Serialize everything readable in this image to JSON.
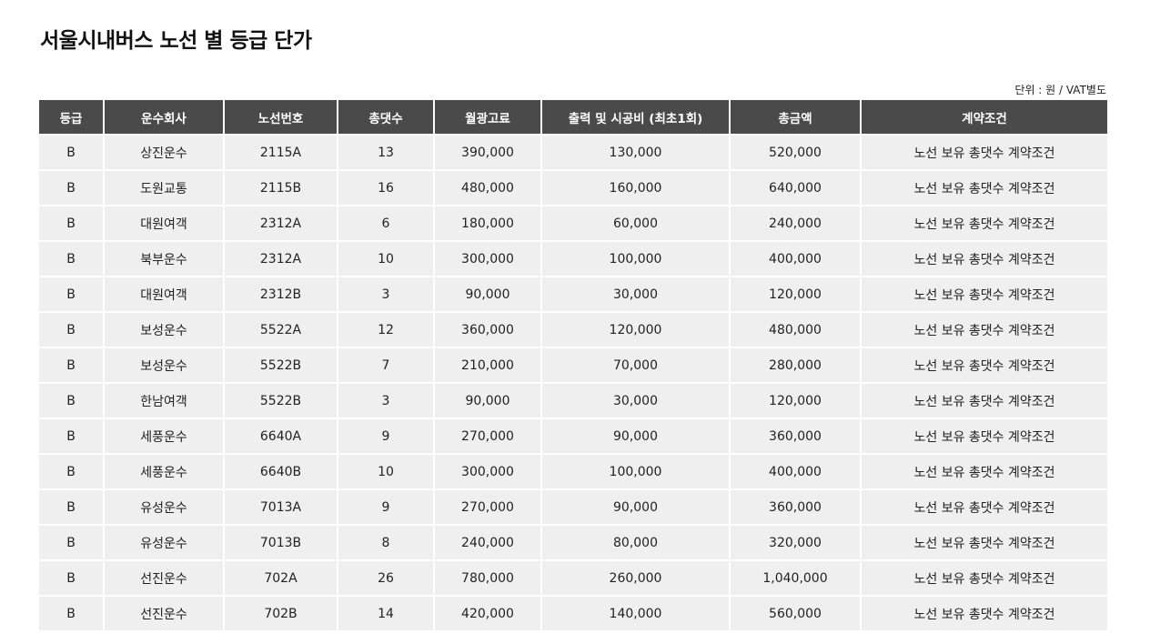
{
  "page": {
    "title": "서울시내버스 노선 별 등급 단가",
    "unit_note": "단위 : 원 / VAT별도"
  },
  "table": {
    "headers": [
      "등급",
      "운수회사",
      "노선번호",
      "총댓수",
      "월광고료",
      "출력 및 시공비 (최초1회)",
      "총금액",
      "계약조건"
    ],
    "rows": [
      [
        "B",
        "상진운수",
        "2115A",
        "13",
        "390,000",
        "130,000",
        "520,000",
        "노선 보유 총댓수 계약조건"
      ],
      [
        "B",
        "도원교통",
        "2115B",
        "16",
        "480,000",
        "160,000",
        "640,000",
        "노선 보유 총댓수 계약조건"
      ],
      [
        "B",
        "대원여객",
        "2312A",
        "6",
        "180,000",
        "60,000",
        "240,000",
        "노선 보유 총댓수 계약조건"
      ],
      [
        "B",
        "북부운수",
        "2312A",
        "10",
        "300,000",
        "100,000",
        "400,000",
        "노선 보유 총댓수 계약조건"
      ],
      [
        "B",
        "대원여객",
        "2312B",
        "3",
        "90,000",
        "30,000",
        "120,000",
        "노선 보유 총댓수 계약조건"
      ],
      [
        "B",
        "보성운수",
        "5522A",
        "12",
        "360,000",
        "120,000",
        "480,000",
        "노선 보유 총댓수 계약조건"
      ],
      [
        "B",
        "보성운수",
        "5522B",
        "7",
        "210,000",
        "70,000",
        "280,000",
        "노선 보유 총댓수 계약조건"
      ],
      [
        "B",
        "한남여객",
        "5522B",
        "3",
        "90,000",
        "30,000",
        "120,000",
        "노선 보유 총댓수 계약조건"
      ],
      [
        "B",
        "세풍운수",
        "6640A",
        "9",
        "270,000",
        "90,000",
        "360,000",
        "노선 보유 총댓수 계약조건"
      ],
      [
        "B",
        "세풍운수",
        "6640B",
        "10",
        "300,000",
        "100,000",
        "400,000",
        "노선 보유 총댓수 계약조건"
      ],
      [
        "B",
        "유성운수",
        "7013A",
        "9",
        "270,000",
        "90,000",
        "360,000",
        "노선 보유 총댓수 계약조건"
      ],
      [
        "B",
        "유성운수",
        "7013B",
        "8",
        "240,000",
        "80,000",
        "320,000",
        "노선 보유 총댓수 계약조건"
      ],
      [
        "B",
        "선진운수",
        "702A",
        "26",
        "780,000",
        "260,000",
        "1,040,000",
        "노선 보유 총댓수 계약조건"
      ],
      [
        "B",
        "선진운수",
        "702B",
        "14",
        "420,000",
        "140,000",
        "560,000",
        "노선 보유 총댓수 계약조건"
      ]
    ]
  },
  "colors": {
    "header_bg": "#4a4a4a",
    "header_text": "#ffffff",
    "cell_bg": "#efefef",
    "cell_text": "#222222"
  }
}
